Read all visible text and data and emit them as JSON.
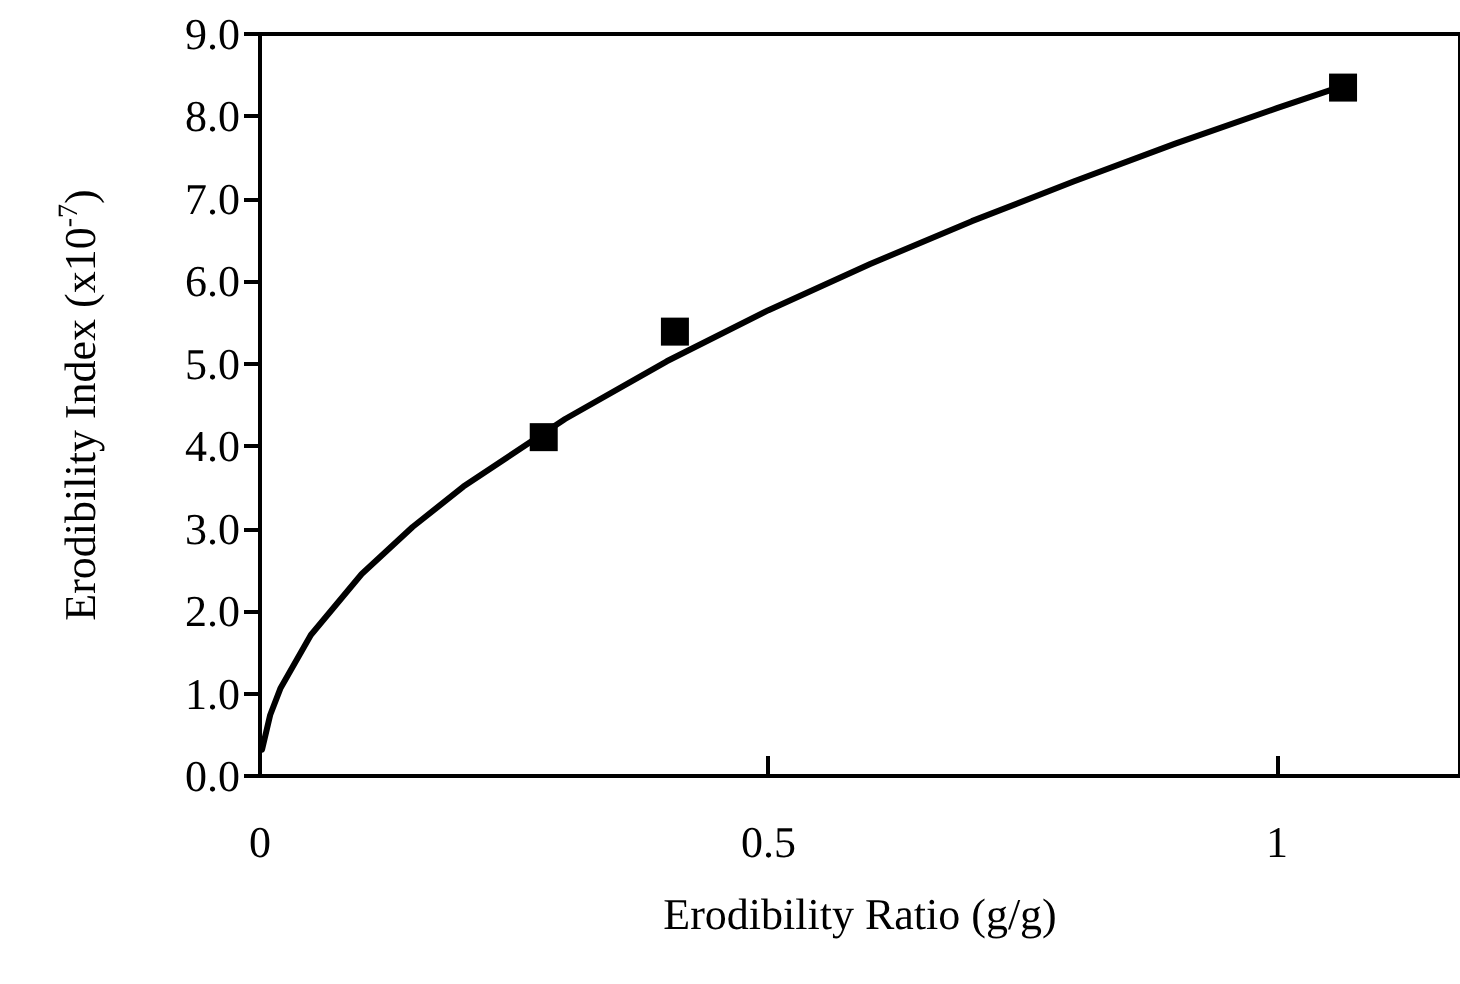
{
  "chart_data": {
    "type": "scatter",
    "xlabel": "Erodibility Ratio (g/g)",
    "ylabel": "Erodibility Index (x10$^{-7}$)",
    "xlim": [
      0,
      1.18
    ],
    "xticks": [
      0,
      0.5,
      1
    ],
    "ylim": [
      0,
      9
    ],
    "yticks": [
      {
        "value": 0,
        "label": "0.0"
      },
      {
        "value": 1,
        "label": "1.0"
      },
      {
        "value": 2,
        "label": "2.0"
      },
      {
        "value": 3,
        "label": "3.0"
      },
      {
        "value": 4,
        "label": "4.0"
      },
      {
        "value": 5,
        "label": "5.0"
      },
      {
        "value": 6,
        "label": "6.0"
      },
      {
        "value": 7,
        "label": "7.0"
      },
      {
        "value": 8,
        "label": "8.0"
      },
      {
        "value": 9,
        "label": "9.0"
      }
    ],
    "grid": false,
    "marker": "square",
    "series": [
      {
        "color": "#000000",
        "x": [
          0.279,
          0.408,
          1.065
        ],
        "values": [
          4.11,
          5.39,
          8.35
        ]
      },
      {
        "type": "line",
        "color": "#000000",
        "line_style": "solid",
        "marker": "none",
        "x": [
          0.002,
          0.01,
          0.02,
          0.05,
          0.1,
          0.15,
          0.2,
          0.3,
          0.4,
          0.5,
          0.6,
          0.7,
          0.8,
          0.9,
          1.0,
          1.065
        ],
        "values": [
          0.32,
          0.74,
          1.06,
          1.71,
          2.45,
          3.02,
          3.51,
          4.33,
          5.03,
          5.65,
          6.21,
          6.73,
          7.21,
          7.67,
          8.1,
          8.37
        ]
      }
    ]
  }
}
